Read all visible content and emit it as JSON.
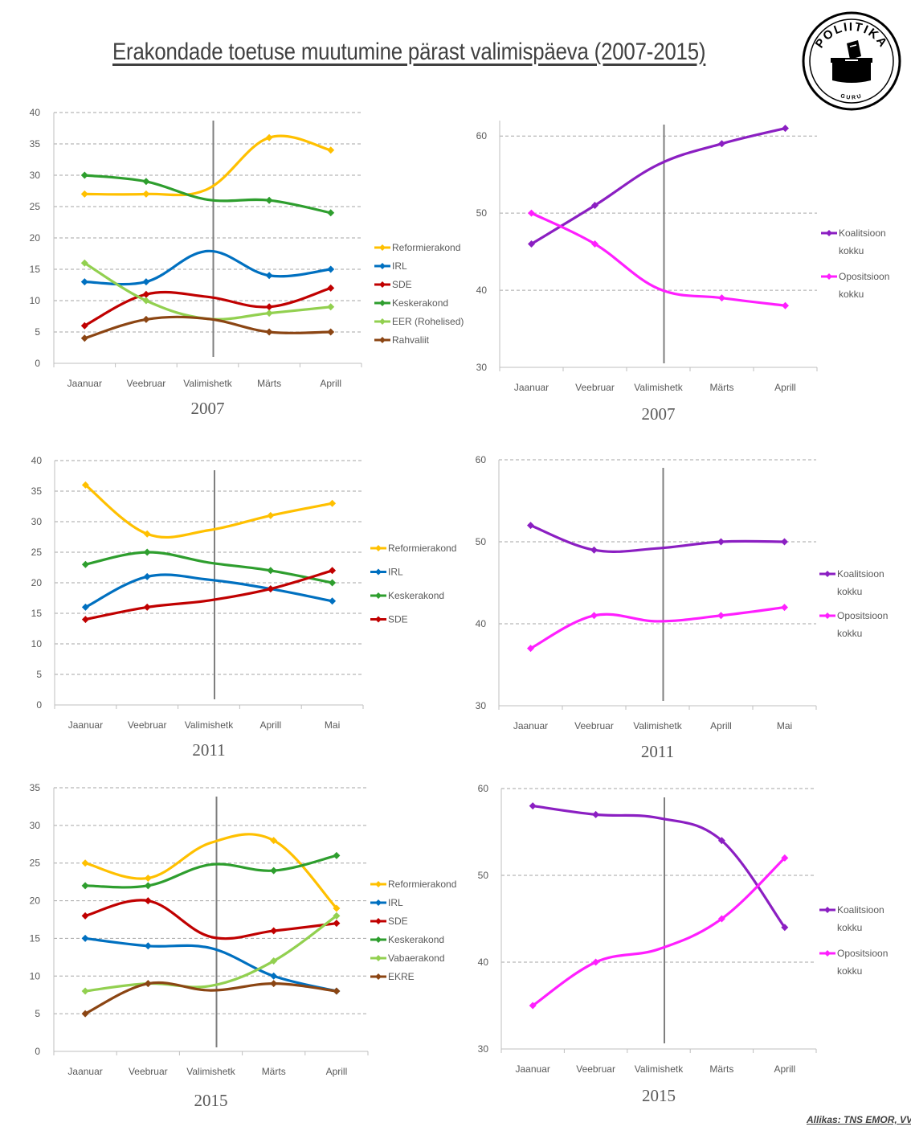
{
  "title": "Erakondade toetuse muutumine pärast valimispäeva (2007-2015)",
  "source": "Allikas: TNS EMOR, VVK",
  "logo": {
    "text_top": "POLIITIKA",
    "text_bottom": "GURU",
    "icon": "ballot-box-icon"
  },
  "colors": {
    "Reformierakond": "#FFC000",
    "IRL": "#0070C0",
    "SDE": "#C00000",
    "Keskerakond": "#2E9E2E",
    "Green": "#92D050",
    "Brown": "#8B4513",
    "Koalitsioon": "#8B1FC2",
    "Opositsioon": "#FF1FFF",
    "grid": "#A6A6A6",
    "marker": "#7F7F7F"
  },
  "chart_data": [
    {
      "type": "line",
      "xlabel": "2007",
      "categories": [
        "Jaanuar",
        "Veebruar",
        "Valimishetk",
        "Märts",
        "Aprill"
      ],
      "ylim": [
        0,
        40
      ],
      "yticks": [
        0,
        5,
        10,
        15,
        20,
        25,
        30,
        35,
        40
      ],
      "marker_category": "Valimishetk",
      "legend": "right",
      "series": [
        {
          "name": "Reformierakond",
          "color": "#FFC000",
          "values": [
            27,
            27,
            27.8,
            36,
            34
          ]
        },
        {
          "name": "IRL",
          "color": "#0070C0",
          "values": [
            13,
            13,
            17.9,
            14,
            15
          ]
        },
        {
          "name": "SDE",
          "color": "#C00000",
          "values": [
            6,
            11,
            10.6,
            9,
            12
          ]
        },
        {
          "name": "Keskerakond",
          "color": "#2E9E2E",
          "values": [
            30,
            29,
            26.1,
            26,
            24
          ]
        },
        {
          "name": "EER (Rohelised)",
          "color": "#92D050",
          "values": [
            16,
            10,
            7.1,
            8,
            9
          ]
        },
        {
          "name": "Rahvaliit",
          "color": "#8B4513",
          "values": [
            4,
            7,
            7.1,
            5,
            5
          ]
        }
      ]
    },
    {
      "type": "line",
      "xlabel": "2007",
      "categories": [
        "Jaanuar",
        "Veebruar",
        "Valimishetk",
        "Märts",
        "Aprill"
      ],
      "ylim": [
        30,
        62
      ],
      "yticks": [
        30,
        40,
        50,
        60
      ],
      "marker_category": "Valimishetk",
      "legend": "right",
      "series": [
        {
          "name": "Koalitsioon kokku",
          "color": "#8B1FC2",
          "values": [
            46,
            51,
            56.3,
            59,
            61
          ]
        },
        {
          "name": "Opositsioon kokku",
          "color": "#FF1FFF",
          "values": [
            50,
            46,
            40.2,
            39,
            38
          ]
        }
      ]
    },
    {
      "type": "line",
      "xlabel": "2011",
      "categories": [
        "Jaanuar",
        "Veebruar",
        "Valimishetk",
        "Aprill",
        "Mai"
      ],
      "ylim": [
        0,
        40
      ],
      "yticks": [
        0,
        5,
        10,
        15,
        20,
        25,
        30,
        35,
        40
      ],
      "marker_category": "Valimishetk",
      "legend": "right",
      "series": [
        {
          "name": "Reformierakond",
          "color": "#FFC000",
          "values": [
            36,
            28,
            28.6,
            31,
            33
          ]
        },
        {
          "name": "IRL",
          "color": "#0070C0",
          "values": [
            16,
            21,
            20.5,
            19,
            17
          ]
        },
        {
          "name": "Keskerakond",
          "color": "#2E9E2E",
          "values": [
            23,
            25,
            23.3,
            22,
            20
          ]
        },
        {
          "name": "SDE",
          "color": "#C00000",
          "values": [
            14,
            16,
            17.1,
            19,
            22
          ]
        }
      ]
    },
    {
      "type": "line",
      "xlabel": "2011",
      "categories": [
        "Jaanuar",
        "Veebruar",
        "Valimishetk",
        "Aprill",
        "Mai"
      ],
      "ylim": [
        30,
        60
      ],
      "yticks": [
        30,
        40,
        50,
        60
      ],
      "marker_category": "Valimishetk",
      "legend": "right",
      "series": [
        {
          "name": "Koalitsioon kokku",
          "color": "#8B1FC2",
          "values": [
            52,
            49,
            49.2,
            50,
            50
          ]
        },
        {
          "name": "Opositsioon kokku",
          "color": "#FF1FFF",
          "values": [
            37,
            41,
            40.3,
            41,
            42
          ]
        }
      ]
    },
    {
      "type": "line",
      "xlabel": "2015",
      "categories": [
        "Jaanuar",
        "Veebruar",
        "Valimishetk",
        "Märts",
        "Aprill"
      ],
      "ylim": [
        0,
        35
      ],
      "yticks": [
        0,
        5,
        10,
        15,
        20,
        25,
        30,
        35
      ],
      "marker_category": "Valimishetk",
      "legend": "right",
      "series": [
        {
          "name": "Reformierakond",
          "color": "#FFC000",
          "values": [
            25,
            23,
            27.7,
            28,
            19
          ]
        },
        {
          "name": "IRL",
          "color": "#0070C0",
          "values": [
            15,
            14,
            13.7,
            10,
            8
          ]
        },
        {
          "name": "SDE",
          "color": "#C00000",
          "values": [
            18,
            20,
            15.2,
            16,
            17
          ]
        },
        {
          "name": "Keskerakond",
          "color": "#2E9E2E",
          "values": [
            22,
            22,
            24.8,
            24,
            26
          ]
        },
        {
          "name": "Vabaerakond",
          "color": "#92D050",
          "values": [
            8,
            9,
            8.7,
            12,
            18
          ]
        },
        {
          "name": "EKRE",
          "color": "#8B4513",
          "values": [
            5,
            9,
            8.1,
            9,
            8
          ]
        }
      ]
    },
    {
      "type": "line",
      "xlabel": "2015",
      "categories": [
        "Jaanuar",
        "Veebruar",
        "Valimishetk",
        "Märts",
        "Aprill"
      ],
      "ylim": [
        30,
        60
      ],
      "yticks": [
        30,
        40,
        50,
        60
      ],
      "marker_category": "Valimishetk",
      "legend": "right",
      "series": [
        {
          "name": "Koalitsioon kokku",
          "color": "#8B1FC2",
          "values": [
            58,
            57,
            56.6,
            54,
            44
          ]
        },
        {
          "name": "Opositsioon kokku",
          "color": "#FF1FFF",
          "values": [
            35,
            40,
            41.5,
            45,
            52
          ]
        }
      ]
    }
  ]
}
